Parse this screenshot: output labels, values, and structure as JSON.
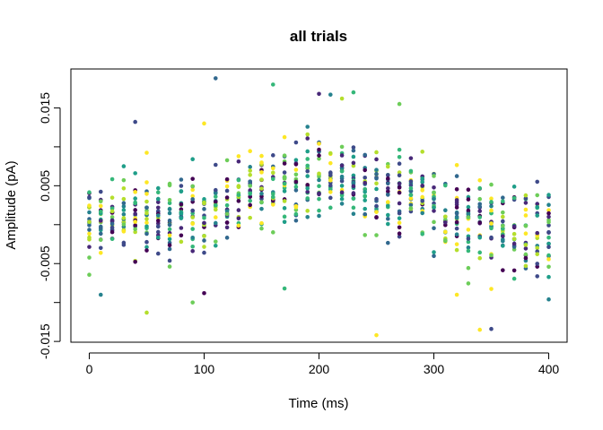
{
  "chart_data": {
    "type": "scatter",
    "title": "all trials",
    "xlabel": "Time (ms)",
    "ylabel": "Amplitude (pA)",
    "xlim": [
      -16,
      416
    ],
    "ylim": [
      -0.0151,
      0.02
    ],
    "x_ticks": [
      0,
      100,
      200,
      300,
      400
    ],
    "x_tick_labels": [
      "0",
      "100",
      "200",
      "300",
      "400"
    ],
    "y_ticks": [
      -0.015,
      -0.01,
      -0.005,
      0.0,
      0.005,
      0.01,
      0.015
    ],
    "y_tick_labels": [
      "-0.015",
      "",
      "-0.005",
      "",
      "0.005",
      "",
      "0.015"
    ],
    "grid": false,
    "legend": "none",
    "time_points": [
      0,
      10,
      20,
      30,
      40,
      50,
      60,
      70,
      80,
      90,
      100,
      110,
      120,
      130,
      140,
      150,
      160,
      170,
      180,
      190,
      200,
      210,
      220,
      230,
      240,
      250,
      260,
      270,
      280,
      290,
      300,
      310,
      320,
      330,
      340,
      350,
      360,
      370,
      380,
      390,
      400
    ],
    "trials": 20,
    "colormap": [
      "#440154",
      "#482878",
      "#3E4A89",
      "#31688E",
      "#26828E",
      "#1F9E89",
      "#35B779",
      "#6DCD59",
      "#B4DE2C",
      "#FDE725"
    ],
    "mean_profile": [
      0.0,
      0.0005,
      0.0011,
      0.0016,
      0.0021,
      0.0014,
      0.0009,
      0.001,
      0.0016,
      0.0018,
      0.0013,
      0.0023,
      0.0032,
      0.0036,
      0.0046,
      0.0044,
      0.0053,
      0.0055,
      0.0053,
      0.0063,
      0.0058,
      0.005,
      0.0055,
      0.0052,
      0.0041,
      0.0031,
      0.0035,
      0.0041,
      0.0036,
      0.0031,
      0.0019,
      0.0008,
      0.0,
      0.0001,
      -0.0005,
      -0.0007,
      -0.0001,
      -0.0004,
      -0.001,
      -0.0012,
      -0.0016
    ],
    "spread_sd": 0.0037,
    "outliers": [
      {
        "x": 110,
        "y": 0.0188,
        "color": "#31688E"
      },
      {
        "x": 160,
        "y": 0.018,
        "color": "#35B779"
      },
      {
        "x": 200,
        "y": 0.0168,
        "color": "#482878"
      },
      {
        "x": 210,
        "y": 0.0167,
        "color": "#26828E"
      },
      {
        "x": 220,
        "y": 0.0162,
        "color": "#B4DE2C"
      },
      {
        "x": 230,
        "y": 0.017,
        "color": "#35B779"
      },
      {
        "x": 270,
        "y": 0.0155,
        "color": "#6DCD59"
      },
      {
        "x": 40,
        "y": 0.0132,
        "color": "#3E4A89"
      },
      {
        "x": 100,
        "y": 0.013,
        "color": "#FDE725"
      },
      {
        "x": 250,
        "y": -0.0142,
        "color": "#FDE725"
      },
      {
        "x": 340,
        "y": -0.0135,
        "color": "#FDE725"
      },
      {
        "x": 350,
        "y": -0.0134,
        "color": "#3E4A89"
      },
      {
        "x": 50,
        "y": -0.0113,
        "color": "#B4DE2C"
      },
      {
        "x": 90,
        "y": -0.01,
        "color": "#6DCD59"
      },
      {
        "x": 10,
        "y": -0.009,
        "color": "#26828E"
      },
      {
        "x": 320,
        "y": -0.009,
        "color": "#FDE725"
      },
      {
        "x": 100,
        "y": -0.0088,
        "color": "#440154"
      },
      {
        "x": 170,
        "y": -0.0082,
        "color": "#35B779"
      },
      {
        "x": 400,
        "y": -0.0096,
        "color": "#26828E"
      }
    ],
    "seed": 7
  }
}
